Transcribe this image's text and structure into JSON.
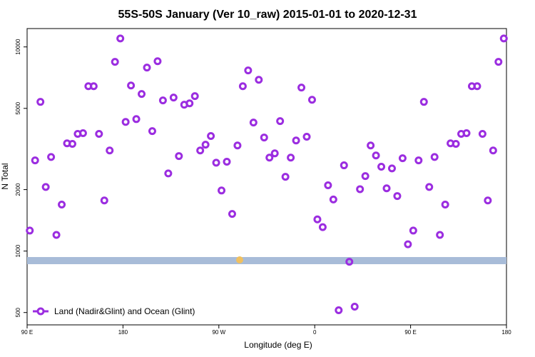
{
  "chart_data": {
    "type": "scatter",
    "title": "55S-50S January (Ver 10_raw)   2015-01-01 to 2020-12-31",
    "x_label": "Longitude (deg E)",
    "y_label": "N Total",
    "log_y": true,
    "xlim": [
      90,
      540
    ],
    "ylim": [
      435,
      12300
    ],
    "xticks": [
      {
        "value": 90,
        "label": "90 E"
      },
      180,
      {
        "value": 270,
        "label": "90 W"
      },
      {
        "value": 360,
        "label": "0"
      },
      {
        "value": 450,
        "label": "90 E"
      },
      {
        "value": 540,
        "label": "180"
      }
    ],
    "yticks": [
      500,
      1000,
      2000,
      5000,
      10000
    ],
    "legend_position": "bottom-left",
    "series": [
      {
        "name": "Land (Nadir&Glint) and Ocean (Glint)",
        "color": "#9b2de0",
        "x": [
          92.5,
          97.5,
          102.5,
          107.5,
          112.5,
          117.5,
          122.5,
          127.5,
          132.5,
          137.5,
          142.5,
          147.5,
          152.5,
          157.5,
          162.5,
          167.5,
          172.5,
          177.5,
          182.5,
          187.5,
          192.5,
          197.5,
          202.5,
          207.5,
          212.5,
          217.5,
          222.5,
          227.5,
          232.5,
          237.5,
          242.5,
          247.5,
          252.5,
          257.5,
          262.5,
          267.5,
          272.5,
          277.5,
          282.5,
          287.5,
          292.5,
          297.5,
          302.5,
          307.5,
          312.5,
          317.5,
          322.5,
          327.5,
          332.5,
          337.5,
          342.5,
          347.5,
          352.5,
          357.5,
          362.5,
          367.5,
          372.5,
          377.5,
          382.5,
          387.5,
          392.5,
          397.5,
          402.5,
          407.5,
          412.5,
          417.5,
          422.5,
          427.5,
          432.5,
          437.5,
          442.5,
          447.5,
          452.5,
          457.5,
          462.5,
          467.5,
          472.5,
          477.5,
          482.5,
          487.5,
          492.5,
          497.5,
          502.5,
          507.5,
          512.5,
          517.5,
          522.5,
          527.5,
          532.5,
          537.5
        ],
        "values": [
          1260,
          2780,
          5380,
          2060,
          2890,
          1200,
          1690,
          3370,
          3350,
          3750,
          3780,
          6420,
          6420,
          3750,
          1770,
          3110,
          8450,
          11000,
          4290,
          6470,
          4430,
          5880,
          7920,
          3870,
          8510,
          5470,
          2400,
          5650,
          2920,
          5210,
          5290,
          5740,
          3110,
          3320,
          3660,
          2710,
          1980,
          2740,
          1520,
          3290,
          6420,
          7670,
          4260,
          6900,
          3600,
          2870,
          3010,
          4330,
          2310,
          2870,
          3480,
          6320,
          3630,
          5510,
          1430,
          1310,
          2100,
          1790,
          513,
          2630,
          886,
          534,
          2010,
          2330,
          3290,
          2940,
          2590,
          2030,
          2540,
          1860,
          2850,
          1080,
          1260,
          2780,
          5380,
          2060,
          2890,
          1200,
          1690,
          3370,
          3350,
          3750,
          3780,
          6420,
          6420,
          3750,
          1770,
          3110,
          8450,
          11000
        ]
      }
    ]
  }
}
